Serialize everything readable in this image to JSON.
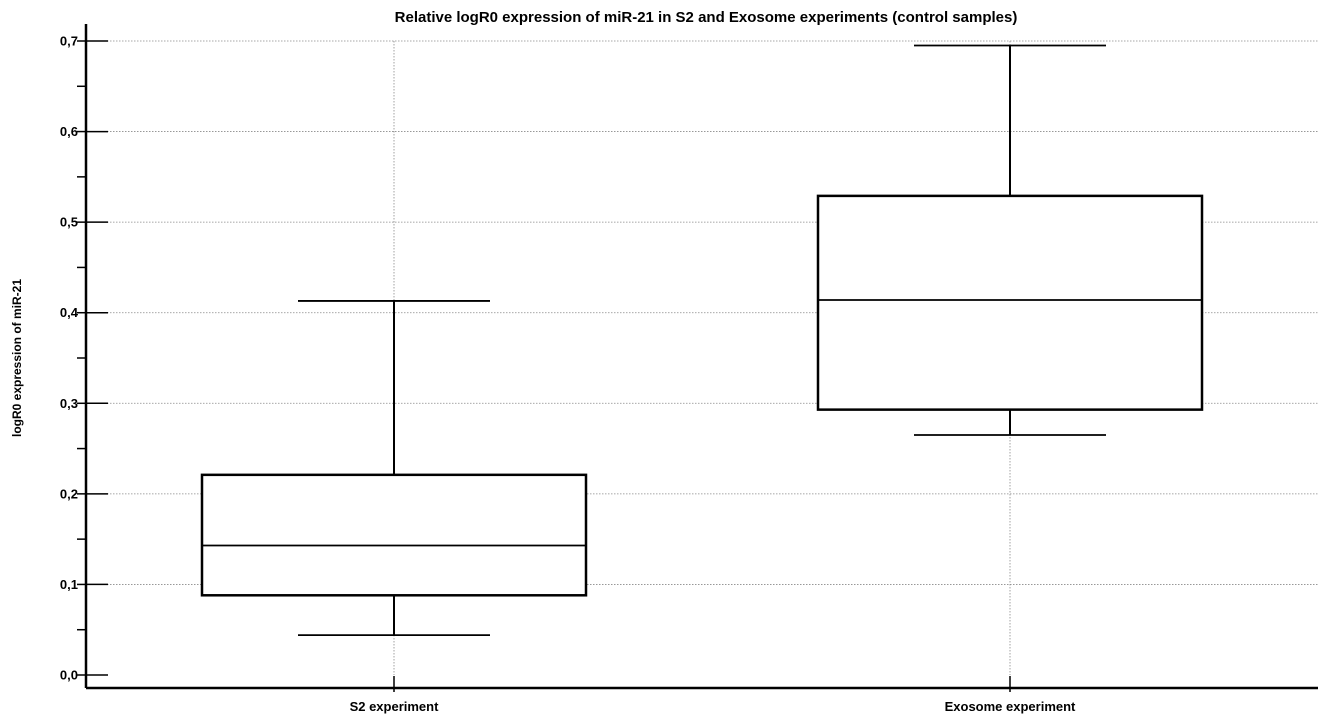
{
  "chart_data": {
    "type": "box",
    "title": "Relative logR0 expression of miR-21 in S2 and Exosome experiments (control samples)",
    "xlabel": "",
    "ylabel": "logR0 expression of miR-21",
    "ylim": [
      0,
      0.7
    ],
    "yticks": [
      "0,0",
      "0,1",
      "0,2",
      "0,3",
      "0,4",
      "0,5",
      "0,6",
      "0,7"
    ],
    "grid": true,
    "categories": [
      "S2 experiment",
      "Exosome experiment"
    ],
    "boxes": [
      {
        "name": "S2 experiment",
        "min": 0.044,
        "q1": 0.088,
        "median": 0.143,
        "q3": 0.221,
        "max": 0.413
      },
      {
        "name": "Exosome experiment",
        "min": 0.265,
        "q1": 0.293,
        "median": 0.414,
        "q3": 0.529,
        "max": 0.695
      }
    ]
  }
}
